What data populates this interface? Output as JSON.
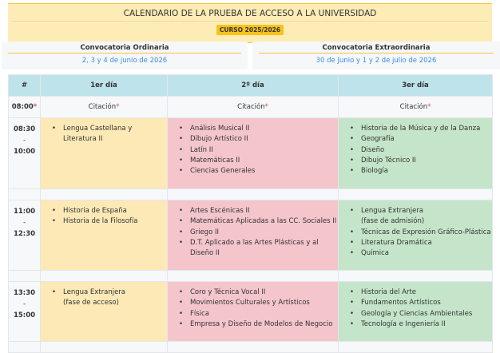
{
  "header": {
    "title": "CALENDARIO DE LA PRUEBA DE ACCESO A LA UNIVERSIDAD",
    "course": "CURSO 2025/2026"
  },
  "convocatorias": [
    {
      "name": "Convocatoria Ordinaria",
      "dates": "2, 3 y 4 de junio de 2026"
    },
    {
      "name": "Convocatoria Extraordinaria",
      "dates": "30 de Junio y 1 y 2 de julio de 2026"
    }
  ],
  "table": {
    "headers": [
      "#",
      "1er día",
      "2º día",
      "3er día"
    ],
    "citation": {
      "time": "08:00",
      "label": "Citación",
      "mark": "*"
    },
    "rows": [
      {
        "start": "08:30",
        "sep": "-",
        "end": "10:00",
        "cols": [
          [
            "Lengua Castellana y Literatura II"
          ],
          [
            "Análisis Musical II",
            "Dibujo Artístico II",
            "Latín II",
            "Matemáticas II",
            "Ciencias Generales"
          ],
          [
            "Historia de la Música y de la Danza",
            "Geografía",
            "Diseño",
            "Dibujo Técnico II",
            "Biología"
          ]
        ]
      },
      {
        "start": "11:00",
        "sep": "-",
        "end": "12:30",
        "cols": [
          [
            "Historia de España",
            "Historia de la Filosofía"
          ],
          [
            "Artes Escénicas II",
            "Matemáticas Aplicadas a las CC. Sociales II",
            "Griego II",
            "D.T. Aplicado a las Artes Plásticas y al Diseño II"
          ],
          [
            "Lengua Extranjera\n(fase de admisión)",
            "Técnicas de Expresión Gráfico-Plástica",
            "Literatura Dramática",
            "Química"
          ]
        ]
      },
      {
        "start": "13:30",
        "sep": "-",
        "end": "15:00",
        "cols": [
          [
            "Lengua Extranjera\n(fase de acceso)"
          ],
          [
            "Coro y Técnica Vocal II",
            "Movimientos Culturales y Artísticos",
            "Física",
            "Empresa y Diseño de Modelos de Negocio"
          ],
          [
            "Historia del Arte",
            "Fundamentos Artísticos",
            "Geología y Ciencias Ambientales",
            "Tecnología e Ingeniería II"
          ]
        ]
      }
    ]
  },
  "colors": {
    "day1": "#fde9b6",
    "day2": "#f4c6cc",
    "day3": "#c4e5c9",
    "header": "#bee3ea",
    "accent": "#f9c21a",
    "link": "#3a8ee6"
  }
}
